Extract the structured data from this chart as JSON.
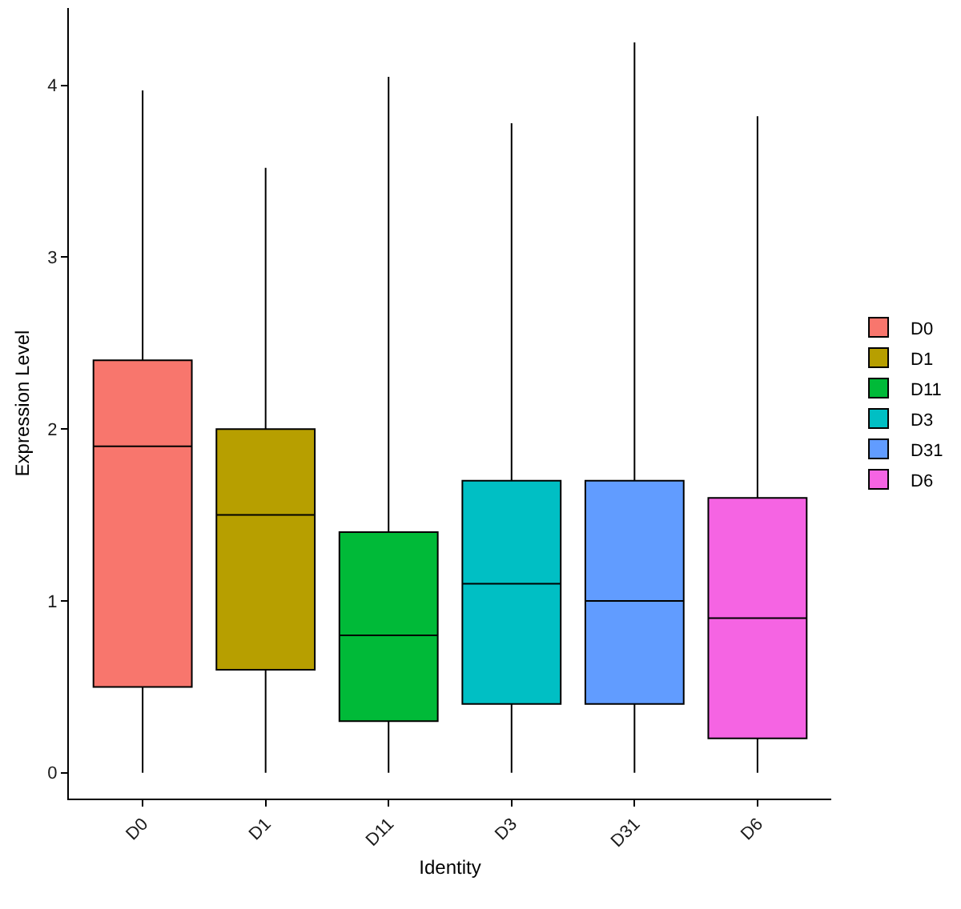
{
  "chart_data": {
    "type": "box",
    "xlabel": "Identity",
    "ylabel": "Expression Level",
    "categories": [
      "D0",
      "D1",
      "D11",
      "D3",
      "D31",
      "D6"
    ],
    "series": [
      {
        "name": "D0",
        "color": "#f8766d",
        "boxes": [
          {
            "low": 0,
            "q1": 0.5,
            "median": 1.9,
            "q3": 2.4,
            "high": 3.97
          },
          null,
          null,
          null,
          null,
          null
        ]
      },
      {
        "name": "D1",
        "color": "#b79f00",
        "boxes": [
          null,
          {
            "low": 0,
            "q1": 0.6,
            "median": 1.5,
            "q3": 2.0,
            "high": 3.52
          },
          null,
          null,
          null,
          null
        ]
      },
      {
        "name": "D11",
        "color": "#00ba38",
        "boxes": [
          null,
          null,
          {
            "low": 0,
            "q1": 0.3,
            "median": 0.8,
            "q3": 1.4,
            "high": 4.05
          },
          null,
          null,
          null
        ]
      },
      {
        "name": "D3",
        "color": "#00bfc4",
        "boxes": [
          null,
          null,
          null,
          {
            "low": 0,
            "q1": 0.4,
            "median": 1.1,
            "q3": 1.7,
            "high": 3.78
          },
          null,
          null
        ]
      },
      {
        "name": "D31",
        "color": "#619cff",
        "boxes": [
          null,
          null,
          null,
          null,
          {
            "low": 0,
            "q1": 0.4,
            "median": 1.0,
            "q3": 1.7,
            "high": 4.25
          },
          null
        ]
      },
      {
        "name": "D6",
        "color": "#f564e3",
        "boxes": [
          null,
          null,
          null,
          null,
          null,
          {
            "low": 0,
            "q1": 0.2,
            "median": 0.9,
            "q3": 1.6,
            "high": 3.82
          }
        ]
      }
    ],
    "ylim": [
      -0.15,
      4.45
    ],
    "yticks": [
      0,
      1,
      2,
      3,
      4
    ],
    "legend": "right"
  }
}
